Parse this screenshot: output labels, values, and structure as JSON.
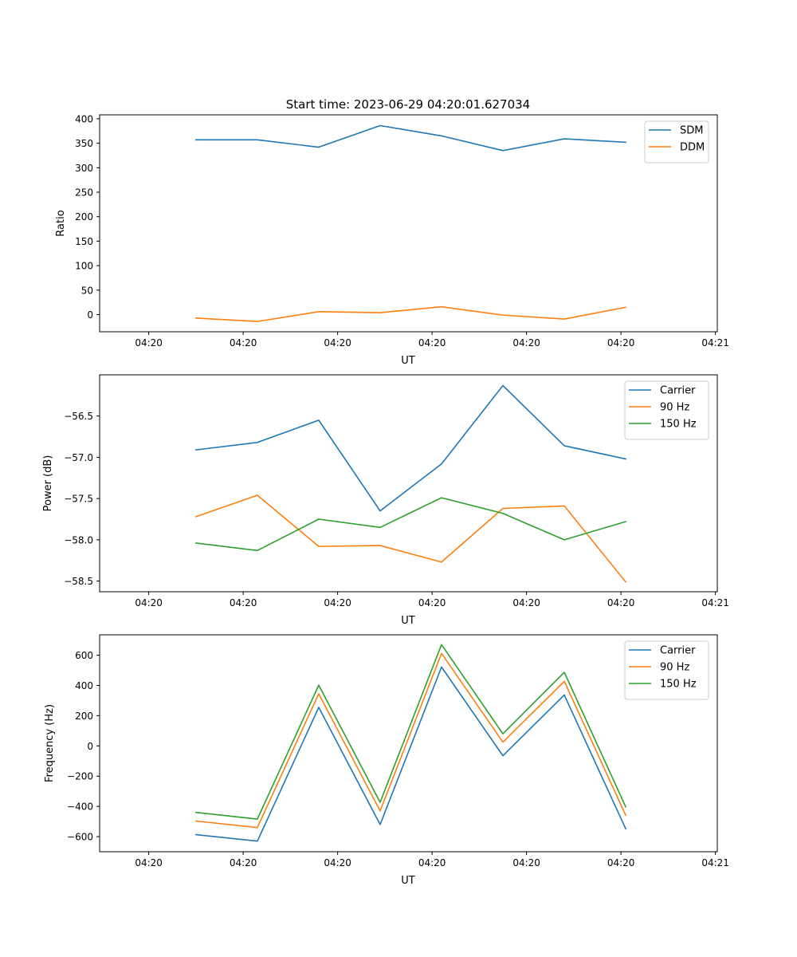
{
  "colors": {
    "c0": "#1f77b4",
    "c1": "#ff7f0e",
    "c2": "#2ca02c"
  },
  "chart_data": [
    {
      "type": "line",
      "title": "Start time: 2023-06-29 04:20:01.627034",
      "xlabel": "UT",
      "ylabel": "Ratio",
      "x_ticks": [
        "04:20",
        "04:20",
        "04:20",
        "04:20",
        "04:20",
        "04:20",
        "04:21"
      ],
      "x_tick_values": [
        0,
        1,
        2,
        3,
        4,
        5,
        6
      ],
      "xlim": [
        -0.52,
        6.02
      ],
      "x": [
        0.5,
        1.15,
        1.8,
        2.45,
        3.1,
        3.75,
        4.4,
        5.05
      ],
      "ylim": [
        -35,
        408
      ],
      "y_ticks": [
        0,
        50,
        100,
        150,
        200,
        250,
        300,
        350,
        400
      ],
      "legend": "top-right",
      "series": [
        {
          "name": "SDM",
          "color": "#1f77b4",
          "values": [
            357,
            357,
            342,
            386,
            365,
            335,
            359,
            352
          ]
        },
        {
          "name": "DDM",
          "color": "#ff7f0e",
          "values": [
            -7,
            -14,
            6,
            4,
            16,
            -1,
            -9,
            15
          ]
        }
      ]
    },
    {
      "type": "line",
      "title": "",
      "xlabel": "UT",
      "ylabel": "Power (dB)",
      "x_ticks": [
        "04:20",
        "04:20",
        "04:20",
        "04:20",
        "04:20",
        "04:20",
        "04:21"
      ],
      "x_tick_values": [
        0,
        1,
        2,
        3,
        4,
        5,
        6
      ],
      "xlim": [
        -0.52,
        6.02
      ],
      "x": [
        0.5,
        1.15,
        1.8,
        2.45,
        3.1,
        3.75,
        4.4,
        5.05
      ],
      "ylim": [
        -58.63,
        -56.0
      ],
      "y_ticks": [
        -58.5,
        -58.0,
        -57.5,
        -57.0,
        -56.5
      ],
      "y_tick_labels": [
        "−58.5",
        "−58.0",
        "−57.5",
        "−57.0",
        "−56.5"
      ],
      "legend": "top-right",
      "series": [
        {
          "name": "Carrier",
          "color": "#1f77b4",
          "values": [
            -56.91,
            -56.82,
            -56.55,
            -57.65,
            -57.08,
            -56.13,
            -56.86,
            -57.02
          ]
        },
        {
          "name": "90 Hz",
          "color": "#ff7f0e",
          "values": [
            -57.72,
            -57.46,
            -58.08,
            -58.07,
            -58.27,
            -57.62,
            -57.59,
            -58.51
          ]
        },
        {
          "name": "150 Hz",
          "color": "#2ca02c",
          "values": [
            -58.04,
            -58.13,
            -57.75,
            -57.85,
            -57.49,
            -57.68,
            -58.0,
            -57.78
          ]
        }
      ]
    },
    {
      "type": "line",
      "title": "",
      "xlabel": "UT",
      "ylabel": "Frequency (Hz)",
      "x_ticks": [
        "04:20",
        "04:20",
        "04:20",
        "04:20",
        "04:20",
        "04:20",
        "04:21"
      ],
      "x_tick_values": [
        0,
        1,
        2,
        3,
        4,
        5,
        6
      ],
      "xlim": [
        -0.52,
        6.02
      ],
      "x": [
        0.5,
        1.15,
        1.8,
        2.45,
        3.1,
        3.75,
        4.4,
        5.05
      ],
      "ylim": [
        -700,
        735
      ],
      "y_ticks": [
        -600,
        -400,
        -200,
        0,
        200,
        400,
        600
      ],
      "y_tick_labels": [
        "−600",
        "−400",
        "−200",
        "0",
        "200",
        "400",
        "600"
      ],
      "legend": "top-right",
      "series": [
        {
          "name": "Carrier",
          "color": "#1f77b4",
          "values": [
            -587,
            -630,
            255,
            -520,
            522,
            -65,
            337,
            -548
          ]
        },
        {
          "name": "90 Hz",
          "color": "#ff7f0e",
          "values": [
            -497,
            -540,
            345,
            -430,
            612,
            25,
            427,
            -458
          ]
        },
        {
          "name": "150 Hz",
          "color": "#2ca02c",
          "values": [
            -440,
            -484,
            402,
            -373,
            670,
            80,
            487,
            -403
          ]
        }
      ]
    }
  ]
}
